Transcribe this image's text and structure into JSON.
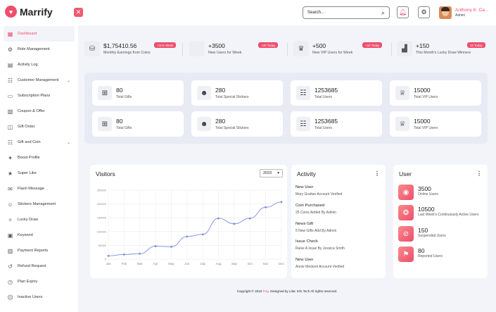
{
  "brand": {
    "name": "Marrify"
  },
  "sidebar": {
    "items": [
      {
        "label": "Dashboard",
        "icon": "dashboard-icon",
        "glyph": "▦",
        "active": true
      },
      {
        "label": "Role Management",
        "icon": "role-icon",
        "glyph": "⚙"
      },
      {
        "label": "Activity Log",
        "icon": "activity-log-icon",
        "glyph": "▤"
      },
      {
        "label": "Customer Management",
        "icon": "customer-icon",
        "glyph": "☷",
        "chevron": true
      },
      {
        "label": "Subscription Plans",
        "icon": "subscription-icon",
        "glyph": "▭"
      },
      {
        "label": "Coupon & Offer",
        "icon": "coupon-icon",
        "glyph": "▧"
      },
      {
        "label": "Gift Order",
        "icon": "gift-order-icon",
        "glyph": "◫"
      },
      {
        "label": "Gift and Coin",
        "icon": "gift-coin-icon",
        "glyph": "☷",
        "chevron": true
      },
      {
        "label": "Boost Profile",
        "icon": "boost-icon",
        "glyph": "✦"
      },
      {
        "label": "Super Like",
        "icon": "super-like-icon",
        "glyph": "★"
      },
      {
        "label": "Flash Message",
        "icon": "flash-icon",
        "glyph": "✉"
      },
      {
        "label": "Stickers Management",
        "icon": "stickers-icon",
        "glyph": "☺"
      },
      {
        "label": "Lucky Draw",
        "icon": "lucky-draw-icon",
        "glyph": "✧"
      },
      {
        "label": "Keyword",
        "icon": "keyword-icon",
        "glyph": "▣"
      },
      {
        "label": "Payment Reports",
        "icon": "payment-icon",
        "glyph": "▥"
      },
      {
        "label": "Refund Request",
        "icon": "refund-icon",
        "glyph": "↺"
      },
      {
        "label": "Plan Expiry",
        "icon": "plan-expiry-icon",
        "glyph": "◷"
      },
      {
        "label": "Inactive Users",
        "icon": "inactive-users-icon",
        "glyph": "☹"
      }
    ]
  },
  "header": {
    "search_placeholder": "Search...",
    "user_name": "Anthony K. Ca...",
    "user_role": "Admin"
  },
  "top_stats": [
    {
      "value": "$1,75410.56",
      "label": "Monthly Earnings from Coins",
      "badge": "+11% Week",
      "icon": "coins-icon",
      "glyph": "⛁"
    },
    {
      "value": "+3500",
      "label": "New Users for Week",
      "badge": "+20 Today",
      "icon": "new-users-icon",
      "glyph": ""
    },
    {
      "value": "+500",
      "label": "New VIP Users for Week",
      "badge": "+10 Today",
      "icon": "vip-trophy-icon",
      "glyph": "♛"
    },
    {
      "value": "+150",
      "label": "This Month's Lucky Draw Winners",
      "badge": "10 Today",
      "icon": "podium-icon",
      "glyph": "▟"
    }
  ],
  "grid_stats": [
    {
      "value": "80",
      "label": "Total Gifts",
      "icon": "gift-icon",
      "glyph": "⊞"
    },
    {
      "value": "280",
      "label": "Total Special Stickers",
      "icon": "sticker-icon",
      "glyph": "☻"
    },
    {
      "value": "1253685",
      "label": "Total Users",
      "icon": "users-icon",
      "glyph": "☷"
    },
    {
      "value": "15000",
      "label": "Total VIP Users",
      "icon": "vip-icon",
      "glyph": "♕"
    },
    {
      "value": "80",
      "label": "Total Gifts",
      "icon": "gift-icon",
      "glyph": "⊞"
    },
    {
      "value": "280",
      "label": "Total Special Stickers",
      "icon": "sticker-icon",
      "glyph": "☻"
    },
    {
      "value": "1253685",
      "label": "Total Users",
      "icon": "users-icon",
      "glyph": "☷"
    },
    {
      "value": "15000",
      "label": "Total VIP Users",
      "icon": "vip-icon",
      "glyph": "♕"
    }
  ],
  "visitors": {
    "title": "Visitors",
    "year": "2023"
  },
  "chart_data": {
    "type": "line",
    "x": [
      "Jan",
      "Feb",
      "Mar",
      "Apr",
      "May",
      "Jun",
      "July",
      "Aug",
      "Sep",
      "Oct",
      "Nov",
      "Dec"
    ],
    "values": [
      12000,
      17000,
      20000,
      47000,
      45000,
      82000,
      90000,
      148000,
      128000,
      148000,
      188000,
      207000
    ],
    "yticks": [
      "0",
      "50000",
      "100000",
      "150000",
      "200000",
      "250000"
    ],
    "ylim": [
      0,
      250000
    ],
    "grid": true,
    "color": "#7b8fd6"
  },
  "activity": {
    "title": "Activity",
    "items": [
      {
        "title": "New User",
        "sub": "Mary Grattan Account Verified"
      },
      {
        "title": "Coin Purchased",
        "sub": "25 Coins Added By  Admin"
      },
      {
        "title": "News Gift",
        "sub": "5 New Gifts Add By Admin"
      },
      {
        "title": "Issue Check",
        "sub": "Raise A Issue By Jessica Smith"
      },
      {
        "title": "New User",
        "sub": "Annie Medved Account Verified"
      }
    ]
  },
  "user_card": {
    "title": "User",
    "items": [
      {
        "value": "3500",
        "label": "Online Users",
        "icon": "online-users-icon",
        "glyph": "◉"
      },
      {
        "value": "10500",
        "label": "Last Week's Continuously Active Users",
        "icon": "active-users-icon",
        "glyph": "❂"
      },
      {
        "value": "150",
        "label": "Suspended Users",
        "icon": "suspended-users-icon",
        "glyph": "⊘"
      },
      {
        "value": "80",
        "label": "Reported Users",
        "icon": "reported-users-icon",
        "glyph": "⚑"
      }
    ]
  },
  "footer": {
    "prefix": "Copyright © 2024 ",
    "brand": "Frig",
    "suffix": ". Designed by Lilac Info Tech All rights reserved."
  }
}
